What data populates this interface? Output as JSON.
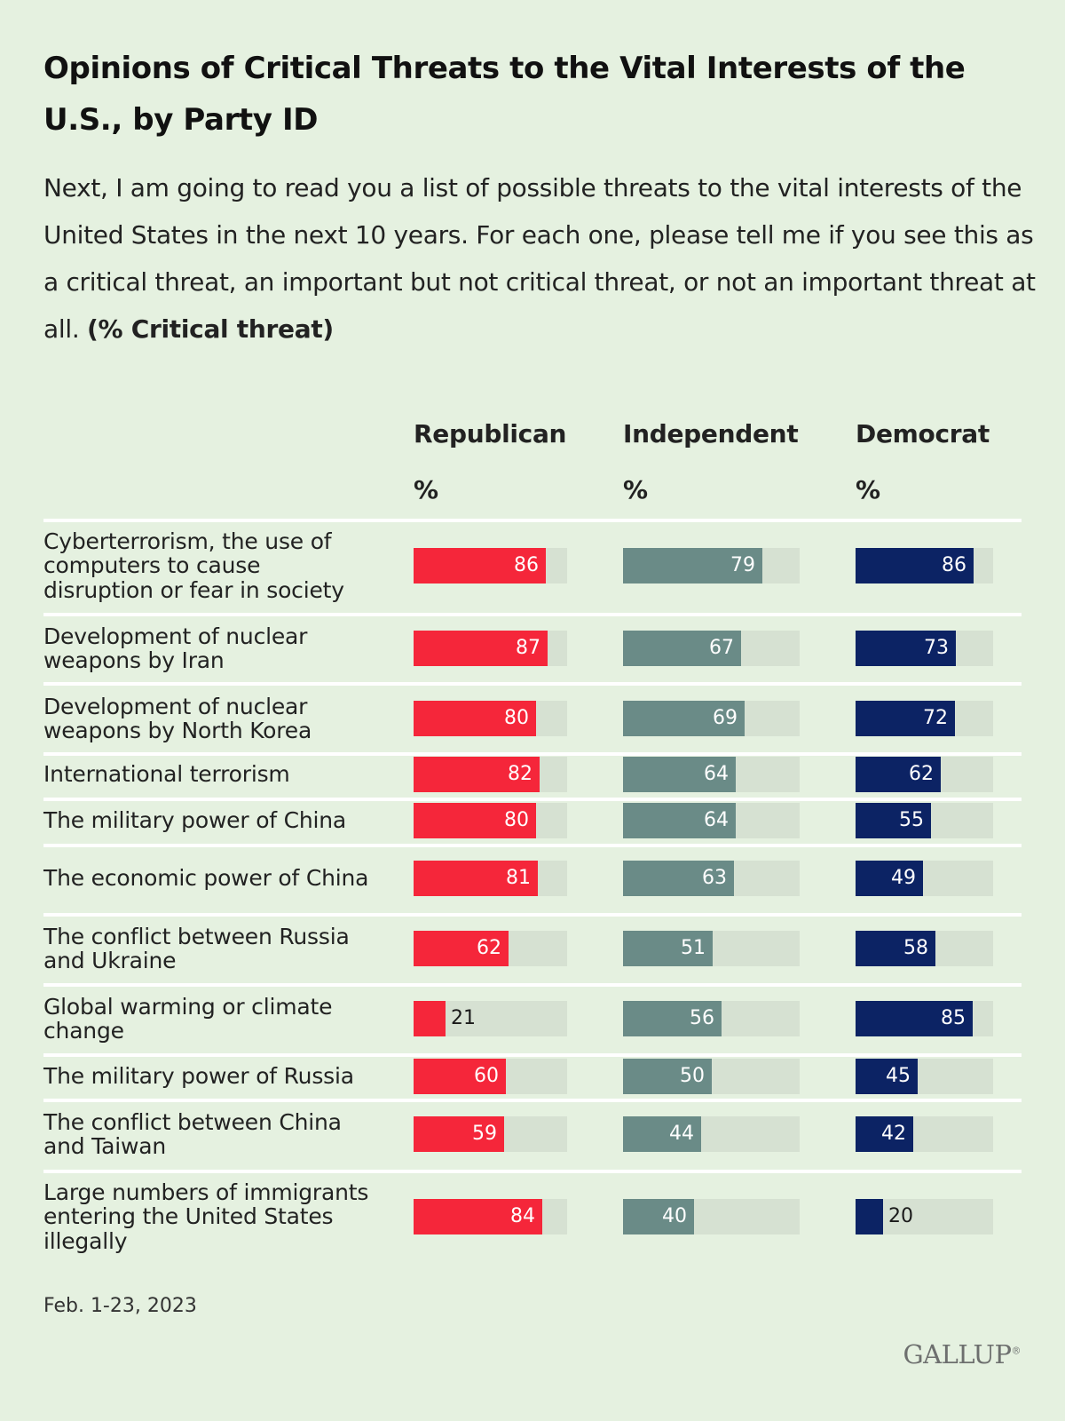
{
  "title": "Opinions of Critical Threats to the Vital Interests of the U.S., by Party ID",
  "subtitle": "Next, I am going to read you a list of possible threats to the vital interests of the United States in the next 10 years. For each one, please tell me if you see this as a critical threat, an important but not critical threat, or not an important threat at all.",
  "subtitle_emphasis": "(% Critical threat)",
  "footnote": "Feb. 1-23, 2023",
  "logo": "GALLUP",
  "colors": {
    "background": "#e5f1e0",
    "republican": "#f5263a",
    "independent": "#6a8b87",
    "democrat": "#0c2364",
    "track": "#d6e1d2"
  },
  "chart_data": {
    "type": "bar",
    "orientation": "horizontal",
    "value_unit": "%",
    "xlim": [
      0,
      100
    ],
    "columns": [
      {
        "name": "Republican",
        "unit": "%"
      },
      {
        "name": "Independent",
        "unit": "%"
      },
      {
        "name": "Democrat",
        "unit": "%"
      }
    ],
    "categories": [
      "Cyberterrorism, the use of computers to cause disruption or fear in society",
      "Development of nuclear weapons by Iran",
      "Development of nuclear weapons by North Korea",
      "International terrorism",
      "The military power of China",
      "The economic power of China",
      "The conflict between Russia and Ukraine",
      "Global warming or climate change",
      "The military power of Russia",
      "The conflict between China and Taiwan",
      "Large numbers of immigrants entering the United States illegally"
    ],
    "series": [
      {
        "name": "Republican",
        "values": [
          86,
          87,
          80,
          82,
          80,
          81,
          62,
          21,
          60,
          59,
          84
        ]
      },
      {
        "name": "Independent",
        "values": [
          79,
          67,
          69,
          64,
          64,
          63,
          51,
          56,
          50,
          44,
          40
        ]
      },
      {
        "name": "Democrat",
        "values": [
          86,
          73,
          72,
          62,
          55,
          49,
          58,
          85,
          45,
          42,
          20
        ]
      }
    ]
  }
}
